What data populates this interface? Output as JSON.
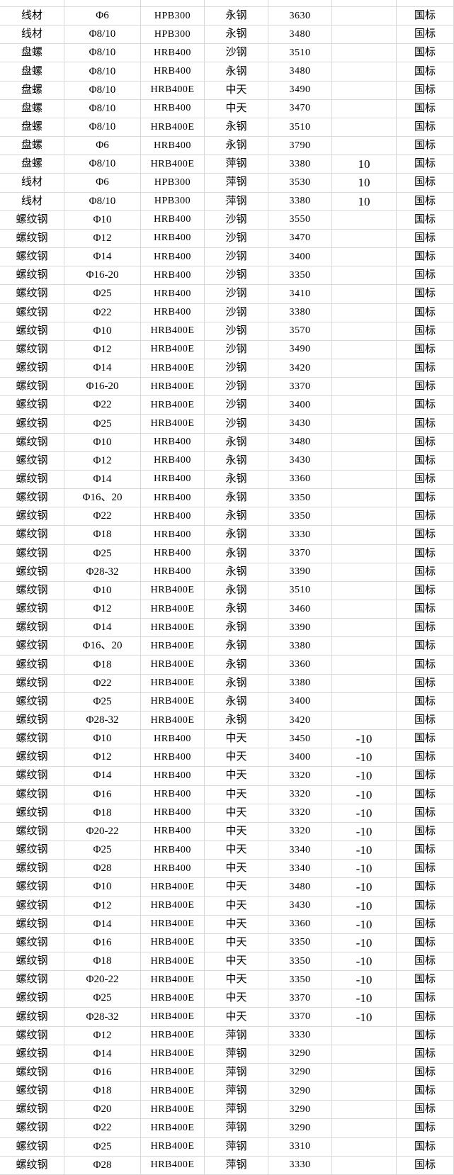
{
  "colors": {
    "background": "#ffffff",
    "gridline": "#d9d9d9",
    "text": "#000000"
  },
  "table": {
    "column_keys": [
      "product",
      "spec",
      "grade",
      "mill",
      "price",
      "change",
      "standard"
    ],
    "rows": [
      [
        "线材",
        "Φ6",
        "HPB300",
        "永钢",
        "3630",
        "",
        "国标"
      ],
      [
        "线材",
        "Φ8/10",
        "HPB300",
        "永钢",
        "3480",
        "",
        "国标"
      ],
      [
        "盘螺",
        "Φ8/10",
        "HRB400",
        "沙钢",
        "3510",
        "",
        "国标"
      ],
      [
        "盘螺",
        "Φ8/10",
        "HRB400",
        "永钢",
        "3480",
        "",
        "国标"
      ],
      [
        "盘螺",
        "Φ8/10",
        "HRB400E",
        "中天",
        "3490",
        "",
        "国标"
      ],
      [
        "盘螺",
        "Φ8/10",
        "HRB400",
        "中天",
        "3470",
        "",
        "国标"
      ],
      [
        "盘螺",
        "Φ8/10",
        "HRB400E",
        "永钢",
        "3510",
        "",
        "国标"
      ],
      [
        "盘螺",
        "Φ6",
        "HRB400",
        "永钢",
        "3790",
        "",
        "国标"
      ],
      [
        "盘螺",
        "Φ8/10",
        "HRB400E",
        "萍钢",
        "3380",
        "10",
        "国标"
      ],
      [
        "线材",
        "Φ6",
        "HPB300",
        "萍钢",
        "3530",
        "10",
        "国标"
      ],
      [
        "线材",
        "Φ8/10",
        "HPB300",
        "萍钢",
        "3380",
        "10",
        "国标"
      ],
      [
        "螺纹钢",
        "Φ10",
        "HRB400",
        "沙钢",
        "3550",
        "",
        "国标"
      ],
      [
        "螺纹钢",
        "Φ12",
        "HRB400",
        "沙钢",
        "3470",
        "",
        "国标"
      ],
      [
        "螺纹钢",
        "Φ14",
        "HRB400",
        "沙钢",
        "3400",
        "",
        "国标"
      ],
      [
        "螺纹钢",
        "Φ16-20",
        "HRB400",
        "沙钢",
        "3350",
        "",
        "国标"
      ],
      [
        "螺纹钢",
        "Φ25",
        "HRB400",
        "沙钢",
        "3410",
        "",
        "国标"
      ],
      [
        "螺纹钢",
        "Φ22",
        "HRB400",
        "沙钢",
        "3380",
        "",
        "国标"
      ],
      [
        "螺纹钢",
        "Φ10",
        "HRB400E",
        "沙钢",
        "3570",
        "",
        "国标"
      ],
      [
        "螺纹钢",
        "Φ12",
        "HRB400E",
        "沙钢",
        "3490",
        "",
        "国标"
      ],
      [
        "螺纹钢",
        "Φ14",
        "HRB400E",
        "沙钢",
        "3420",
        "",
        "国标"
      ],
      [
        "螺纹钢",
        "Φ16-20",
        "HRB400E",
        "沙钢",
        "3370",
        "",
        "国标"
      ],
      [
        "螺纹钢",
        "Φ22",
        "HRB400E",
        "沙钢",
        "3400",
        "",
        "国标"
      ],
      [
        "螺纹钢",
        "Φ25",
        "HRB400E",
        "沙钢",
        "3430",
        "",
        "国标"
      ],
      [
        "螺纹钢",
        "Φ10",
        "HRB400",
        "永钢",
        "3480",
        "",
        "国标"
      ],
      [
        "螺纹钢",
        "Φ12",
        "HRB400",
        "永钢",
        "3430",
        "",
        "国标"
      ],
      [
        "螺纹钢",
        "Φ14",
        "HRB400",
        "永钢",
        "3360",
        "",
        "国标"
      ],
      [
        "螺纹钢",
        "Φ16、20",
        "HRB400",
        "永钢",
        "3350",
        "",
        "国标"
      ],
      [
        "螺纹钢",
        "Φ22",
        "HRB400",
        "永钢",
        "3350",
        "",
        "国标"
      ],
      [
        "螺纹钢",
        "Φ18",
        "HRB400",
        "永钢",
        "3330",
        "",
        "国标"
      ],
      [
        "螺纹钢",
        "Φ25",
        "HRB400",
        "永钢",
        "3370",
        "",
        "国标"
      ],
      [
        "螺纹钢",
        "Φ28-32",
        "HRB400",
        "永钢",
        "3390",
        "",
        "国标"
      ],
      [
        "螺纹钢",
        "Φ10",
        "HRB400E",
        "永钢",
        "3510",
        "",
        "国标"
      ],
      [
        "螺纹钢",
        "Φ12",
        "HRB400E",
        "永钢",
        "3460",
        "",
        "国标"
      ],
      [
        "螺纹钢",
        "Φ14",
        "HRB400E",
        "永钢",
        "3390",
        "",
        "国标"
      ],
      [
        "螺纹钢",
        "Φ16、20",
        "HRB400E",
        "永钢",
        "3380",
        "",
        "国标"
      ],
      [
        "螺纹钢",
        "Φ18",
        "HRB400E",
        "永钢",
        "3360",
        "",
        "国标"
      ],
      [
        "螺纹钢",
        "Φ22",
        "HRB400E",
        "永钢",
        "3380",
        "",
        "国标"
      ],
      [
        "螺纹钢",
        "Φ25",
        "HRB400E",
        "永钢",
        "3400",
        "",
        "国标"
      ],
      [
        "螺纹钢",
        "Φ28-32",
        "HRB400E",
        "永钢",
        "3420",
        "",
        "国标"
      ],
      [
        "螺纹钢",
        "Φ10",
        "HRB400",
        "中天",
        "3450",
        "-10",
        "国标"
      ],
      [
        "螺纹钢",
        "Φ12",
        "HRB400",
        "中天",
        "3400",
        "-10",
        "国标"
      ],
      [
        "螺纹钢",
        "Φ14",
        "HRB400",
        "中天",
        "3320",
        "-10",
        "国标"
      ],
      [
        "螺纹钢",
        "Φ16",
        "HRB400",
        "中天",
        "3320",
        "-10",
        "国标"
      ],
      [
        "螺纹钢",
        "Φ18",
        "HRB400",
        "中天",
        "3320",
        "-10",
        "国标"
      ],
      [
        "螺纹钢",
        "Φ20-22",
        "HRB400",
        "中天",
        "3320",
        "-10",
        "国标"
      ],
      [
        "螺纹钢",
        "Φ25",
        "HRB400",
        "中天",
        "3340",
        "-10",
        "国标"
      ],
      [
        "螺纹钢",
        "Φ28",
        "HRB400",
        "中天",
        "3340",
        "-10",
        "国标"
      ],
      [
        "螺纹钢",
        "Φ10",
        "HRB400E",
        "中天",
        "3480",
        "-10",
        "国标"
      ],
      [
        "螺纹钢",
        "Φ12",
        "HRB400E",
        "中天",
        "3430",
        "-10",
        "国标"
      ],
      [
        "螺纹钢",
        "Φ14",
        "HRB400E",
        "中天",
        "3360",
        "-10",
        "国标"
      ],
      [
        "螺纹钢",
        "Φ16",
        "HRB400E",
        "中天",
        "3350",
        "-10",
        "国标"
      ],
      [
        "螺纹钢",
        "Φ18",
        "HRB400E",
        "中天",
        "3350",
        "-10",
        "国标"
      ],
      [
        "螺纹钢",
        "Φ20-22",
        "HRB400E",
        "中天",
        "3350",
        "-10",
        "国标"
      ],
      [
        "螺纹钢",
        "Φ25",
        "HRB400E",
        "中天",
        "3370",
        "-10",
        "国标"
      ],
      [
        "螺纹钢",
        "Φ28-32",
        "HRB400E",
        "中天",
        "3370",
        "-10",
        "国标"
      ],
      [
        "螺纹钢",
        "Φ12",
        "HRB400E",
        "萍钢",
        "3330",
        "",
        "国标"
      ],
      [
        "螺纹钢",
        "Φ14",
        "HRB400E",
        "萍钢",
        "3290",
        "",
        "国标"
      ],
      [
        "螺纹钢",
        "Φ16",
        "HRB400E",
        "萍钢",
        "3290",
        "",
        "国标"
      ],
      [
        "螺纹钢",
        "Φ18",
        "HRB400E",
        "萍钢",
        "3290",
        "",
        "国标"
      ],
      [
        "螺纹钢",
        "Φ20",
        "HRB400E",
        "萍钢",
        "3290",
        "",
        "国标"
      ],
      [
        "螺纹钢",
        "Φ22",
        "HRB400E",
        "萍钢",
        "3290",
        "",
        "国标"
      ],
      [
        "螺纹钢",
        "Φ25",
        "HRB400E",
        "萍钢",
        "3310",
        "",
        "国标"
      ],
      [
        "螺纹钢",
        "Φ28",
        "HRB400E",
        "萍钢",
        "3330",
        "",
        "国标"
      ]
    ]
  }
}
